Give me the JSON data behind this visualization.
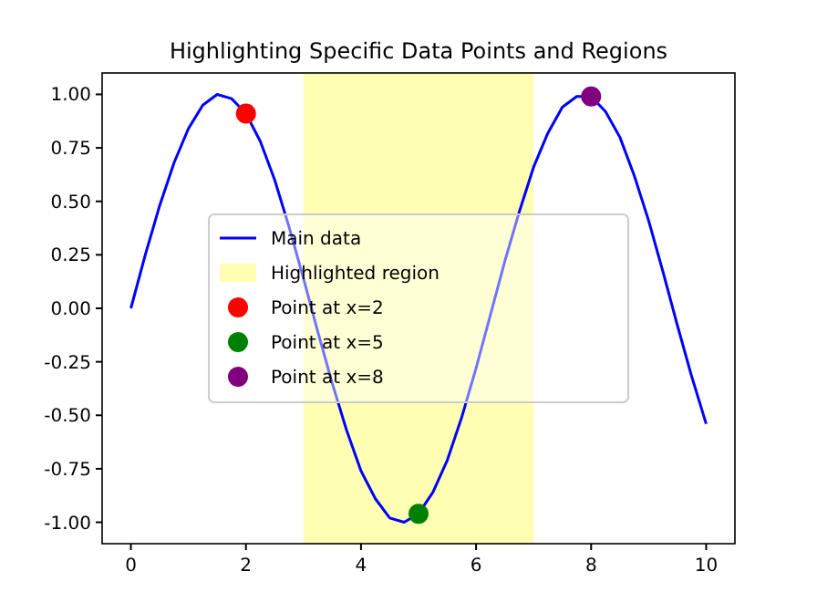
{
  "chart_data": {
    "type": "line",
    "title": "Highlighting Specific Data Points and Regions",
    "xlim": [
      -0.5,
      10.5
    ],
    "xticks": [
      0,
      2,
      4,
      6,
      8,
      10
    ],
    "ylim": [
      -1.1,
      1.1
    ],
    "yticks": [
      {
        "value": -1,
        "label": "-1.00"
      },
      {
        "value": -0.75,
        "label": "-0.75"
      },
      {
        "value": -0.5,
        "label": "-0.50"
      },
      {
        "value": -0.25,
        "label": "-0.25"
      },
      {
        "value": 0,
        "label": "0.00"
      },
      {
        "value": 0.25,
        "label": "0.25"
      },
      {
        "value": 0.5,
        "label": "0.50"
      },
      {
        "value": 0.75,
        "label": "0.75"
      },
      {
        "value": 1,
        "label": "1.00"
      }
    ],
    "bands": [
      {
        "axis": "x",
        "from": 3,
        "to": 7,
        "label": "Highlighted region",
        "color": "#ffffb3"
      }
    ],
    "legend": "center",
    "grid": false,
    "series": [
      {
        "name": "Main data",
        "color": "#0000ff",
        "x": [
          0,
          0.25,
          0.5,
          0.75,
          1,
          1.25,
          1.5,
          1.75,
          2,
          2.25,
          2.5,
          2.75,
          3,
          3.25,
          3.5,
          3.75,
          4,
          4.25,
          4.5,
          4.75,
          5,
          5.25,
          5.5,
          5.75,
          6,
          6.25,
          6.5,
          6.75,
          7,
          7.25,
          7.5,
          7.75,
          8,
          8.25,
          8.5,
          8.75,
          9,
          9.25,
          9.5,
          9.75,
          10
        ],
        "values": [
          0,
          0.25,
          0.48,
          0.68,
          0.84,
          0.95,
          1.0,
          0.98,
          0.91,
          0.78,
          0.6,
          0.38,
          0.14,
          -0.11,
          -0.35,
          -0.57,
          -0.76,
          -0.89,
          -0.98,
          -1.0,
          -0.96,
          -0.86,
          -0.71,
          -0.51,
          -0.28,
          -0.03,
          0.22,
          0.45,
          0.66,
          0.82,
          0.94,
          0.99,
          0.99,
          0.92,
          0.8,
          0.62,
          0.41,
          0.17,
          -0.08,
          -0.32,
          -0.54
        ]
      },
      {
        "name": "Point at x=2",
        "type": "scatter",
        "color": "#ff0000",
        "x": [
          2
        ],
        "values": [
          0.91
        ]
      },
      {
        "name": "Point at x=5",
        "type": "scatter",
        "color": "#008000",
        "x": [
          5
        ],
        "values": [
          -0.96
        ]
      },
      {
        "name": "Point at x=8",
        "type": "scatter",
        "color": "#800080",
        "x": [
          8
        ],
        "values": [
          0.99
        ]
      }
    ]
  }
}
